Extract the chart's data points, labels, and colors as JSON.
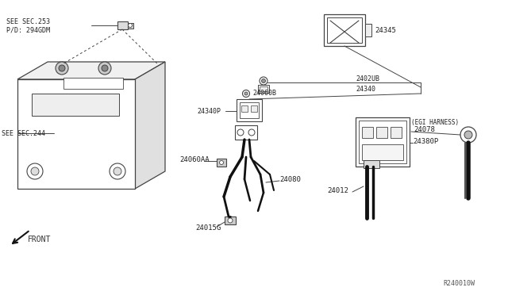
{
  "bg_color": "#ffffff",
  "line_color": "#444444",
  "dark_line": "#111111",
  "ref_code": "R240010W",
  "labels": {
    "see_sec_253": "SEE SEC.253",
    "pd_294gdm": "P/D: 294GDM",
    "see_sec_244": "SEE SEC.244",
    "front": "FRONT",
    "24345": "24345",
    "2402ub": "2402UB",
    "24340": "24340",
    "24340p": "24340P",
    "24060b": "24060B",
    "24060aa": "24060AA",
    "24080": "24080",
    "24015g": "24015G",
    "24380p": "24380P",
    "24078": "24078",
    "egi_harness": "(EGI HARNESS)",
    "24012": "24012"
  }
}
